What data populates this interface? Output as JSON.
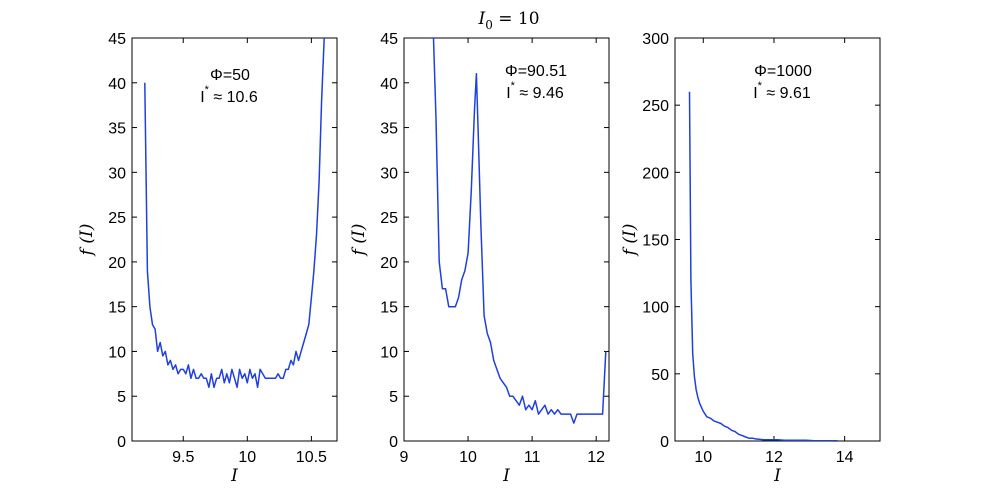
{
  "figure": {
    "title": "I0 = 10",
    "title_main": "I",
    "title_sub": "0",
    "title_rest": " = 10"
  },
  "colors": {
    "series": "#1f3fe0",
    "axis": "#000000",
    "background": "#ffffff"
  },
  "chart_data": [
    {
      "type": "line",
      "xlabel": "I",
      "ylabel": "f (I)",
      "xlim": [
        9.1,
        10.7
      ],
      "ylim": [
        0,
        45
      ],
      "xticks": [
        9.5,
        10,
        10.5
      ],
      "xtick_labels": [
        "9.5",
        "10",
        "10.5"
      ],
      "yticks": [
        0,
        5,
        10,
        15,
        20,
        25,
        30,
        35,
        40,
        45
      ],
      "annotation": {
        "line1": "Φ=50",
        "line2_prefix": "I",
        "line2_sup": "*",
        "line2_rest": "≈ 10.6"
      },
      "series": [
        {
          "name": "f(I)",
          "x": [
            9.2,
            9.22,
            9.24,
            9.26,
            9.28,
            9.3,
            9.32,
            9.34,
            9.36,
            9.38,
            9.4,
            9.42,
            9.44,
            9.46,
            9.48,
            9.5,
            9.52,
            9.54,
            9.56,
            9.58,
            9.6,
            9.62,
            9.64,
            9.66,
            9.68,
            9.7,
            9.72,
            9.74,
            9.76,
            9.78,
            9.8,
            9.82,
            9.84,
            9.86,
            9.88,
            9.9,
            9.92,
            9.94,
            9.96,
            9.98,
            10.0,
            10.02,
            10.04,
            10.06,
            10.08,
            10.1,
            10.12,
            10.14,
            10.16,
            10.18,
            10.2,
            10.22,
            10.24,
            10.26,
            10.28,
            10.3,
            10.32,
            10.34,
            10.36,
            10.38,
            10.4,
            10.42,
            10.44,
            10.46,
            10.48,
            10.5,
            10.52,
            10.54,
            10.56,
            10.58,
            10.6
          ],
          "y": [
            40,
            19,
            15,
            13,
            12.5,
            10,
            11,
            9.5,
            10,
            8.5,
            9,
            8,
            8.5,
            7.5,
            8,
            8,
            7.5,
            8.5,
            7,
            8,
            7,
            7,
            7.5,
            7,
            7,
            6,
            7.5,
            6,
            7,
            7,
            8,
            6.5,
            7.5,
            6.5,
            8,
            7,
            6,
            8,
            7,
            7.5,
            6.5,
            8,
            7,
            7.5,
            6,
            8,
            7.5,
            7,
            7,
            7,
            7,
            7,
            7.5,
            7,
            7,
            8,
            8,
            9,
            8.5,
            10,
            9,
            10,
            11,
            12,
            13,
            16,
            19,
            23,
            29,
            38,
            45
          ]
        }
      ]
    },
    {
      "type": "line",
      "xlabel": "I",
      "ylabel": "f (I)",
      "xlim": [
        9,
        12.2
      ],
      "ylim": [
        0,
        45
      ],
      "xticks": [
        9,
        10,
        11,
        12
      ],
      "xtick_labels": [
        "9",
        "10",
        "11",
        "12"
      ],
      "yticks": [
        0,
        5,
        10,
        15,
        20,
        25,
        30,
        35,
        40,
        45
      ],
      "annotation": {
        "line1": "Φ=90.51",
        "line2_prefix": "I",
        "line2_sup": "*",
        "line2_rest": "≈ 9.46"
      },
      "series": [
        {
          "name": "f(I)",
          "x": [
            9.46,
            9.5,
            9.55,
            9.6,
            9.65,
            9.7,
            9.75,
            9.8,
            9.85,
            9.9,
            9.95,
            10.0,
            10.05,
            10.1,
            10.13,
            10.16,
            10.2,
            10.25,
            10.3,
            10.35,
            10.4,
            10.45,
            10.5,
            10.55,
            10.6,
            10.65,
            10.7,
            10.75,
            10.8,
            10.85,
            10.9,
            10.95,
            11.0,
            11.05,
            11.1,
            11.15,
            11.2,
            11.25,
            11.3,
            11.35,
            11.4,
            11.45,
            11.5,
            11.55,
            11.6,
            11.65,
            11.7,
            11.75,
            11.8,
            11.85,
            11.9,
            11.95,
            12.0,
            12.05,
            12.1,
            12.15
          ],
          "y": [
            45,
            36,
            20,
            17,
            17,
            15,
            15,
            15,
            16,
            18,
            19,
            21,
            28,
            37,
            41,
            34,
            24,
            14,
            12,
            11,
            9,
            8,
            7,
            6.5,
            6,
            5,
            5,
            4.5,
            4,
            5,
            3.5,
            4,
            3.5,
            4.5,
            3,
            3.5,
            4,
            3,
            3.5,
            3,
            3.5,
            3,
            3,
            3,
            3,
            2,
            3,
            3,
            3,
            3,
            3,
            3,
            3,
            3,
            3,
            10
          ]
        }
      ]
    },
    {
      "type": "line",
      "xlabel": "I",
      "ylabel": "f (I)",
      "xlim": [
        9.2,
        15
      ],
      "ylim": [
        0,
        300
      ],
      "xticks": [
        10,
        12,
        14
      ],
      "xtick_labels": [
        "10",
        "12",
        "14"
      ],
      "yticks": [
        0,
        50,
        100,
        150,
        200,
        250,
        300
      ],
      "annotation": {
        "line1": "Φ=1000",
        "line2_prefix": "I",
        "line2_sup": "*",
        "line2_rest": "≈ 9.61"
      },
      "series": [
        {
          "name": "f(I)",
          "x": [
            9.61,
            9.65,
            9.7,
            9.75,
            9.8,
            9.85,
            9.9,
            10.0,
            10.1,
            10.2,
            10.3,
            10.4,
            10.5,
            10.6,
            10.7,
            10.8,
            10.9,
            11.0,
            11.1,
            11.2,
            11.3,
            11.4,
            11.5,
            11.7,
            11.9,
            12.1,
            12.3,
            12.5,
            12.7,
            12.9,
            13.1,
            13.5,
            13.8
          ],
          "y": [
            260,
            120,
            65,
            48,
            38,
            32,
            28,
            22,
            18,
            17,
            15,
            14,
            13,
            11,
            10,
            8,
            7,
            5,
            4,
            3,
            2,
            2,
            1.5,
            1,
            1,
            1,
            0.5,
            0.5,
            0.5,
            0.5,
            0.3,
            0.2,
            0.2
          ]
        }
      ]
    }
  ]
}
